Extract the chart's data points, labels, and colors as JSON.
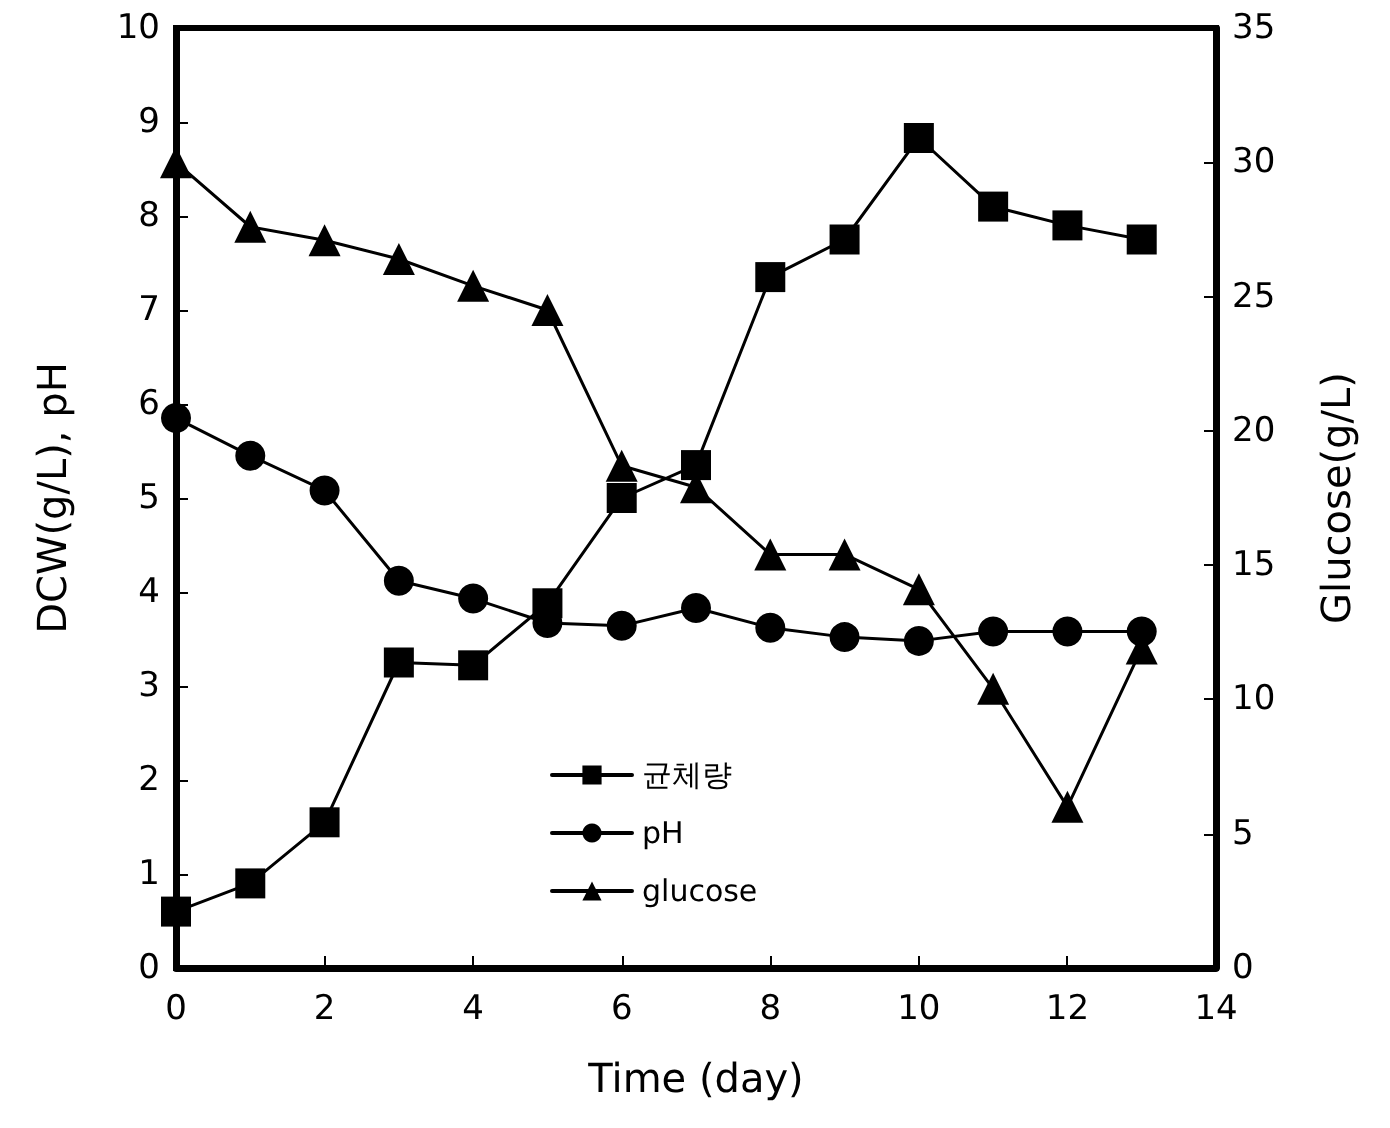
{
  "chart_data": {
    "type": "line",
    "xlabel": "Time (day)",
    "ylabel": "DCW(g/L), pH",
    "y2label": "Glucose(g/L)",
    "x": [
      0,
      1,
      2,
      3,
      4,
      5,
      6,
      7,
      8,
      9,
      10,
      11,
      12,
      13
    ],
    "series": [
      {
        "name": "균체량",
        "color": "#000000",
        "marker": "square",
        "values": [
          0.6,
          0.9,
          1.55,
          3.25,
          3.22,
          3.88,
          5.0,
          5.35,
          7.35,
          7.75,
          8.83,
          8.1,
          7.9,
          7.75
        ]
      },
      {
        "name": "pH",
        "color": "#000000",
        "marker": "circle",
        "values": [
          5.85,
          5.45,
          5.08,
          4.12,
          3.93,
          3.67,
          3.64,
          3.83,
          3.62,
          3.52,
          3.48,
          3.58,
          3.58,
          3.58
        ]
      },
      {
        "name": "glucose",
        "color": "#000000",
        "marker": "triangle",
        "axis": "y2",
        "values": [
          30,
          27.6,
          27.1,
          26.4,
          25.4,
          24.5,
          18.7,
          17.9,
          15.4,
          15.4,
          14.1,
          10.4,
          6.0,
          11.9
        ]
      }
    ],
    "xlim": [
      0,
      14
    ],
    "xticks": [
      0,
      2,
      4,
      6,
      8,
      10,
      12,
      14
    ],
    "ylim": [
      0,
      10
    ],
    "yticks": [
      0,
      1,
      2,
      3,
      4,
      5,
      6,
      7,
      8,
      9,
      10
    ],
    "y2lim": [
      0,
      35
    ],
    "y2ticks": [
      0,
      5,
      10,
      15,
      20,
      25,
      30,
      35
    ],
    "grid": false,
    "legend": "bottom",
    "line_style": "solid"
  }
}
